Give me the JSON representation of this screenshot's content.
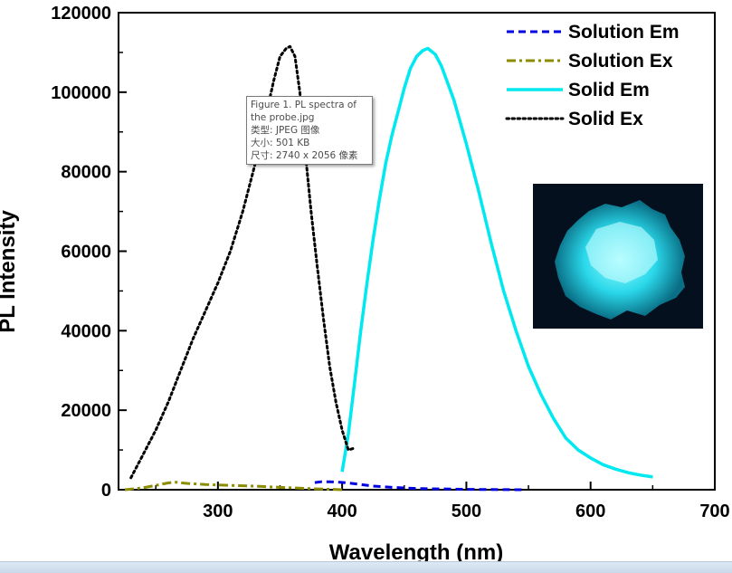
{
  "chart_data": {
    "type": "line",
    "title": "",
    "xlabel": "Wavelength (nm)",
    "ylabel": "PL Intensity",
    "xlim": [
      220,
      700
    ],
    "ylim": [
      0,
      120000
    ],
    "x_ticks": [
      300,
      400,
      500,
      600,
      700
    ],
    "x_tick_labels": [
      "300",
      "400",
      "500",
      "600",
      "700"
    ],
    "y_ticks": [
      0,
      20000,
      40000,
      60000,
      80000,
      100000,
      120000
    ],
    "y_tick_labels": [
      "0",
      "20000",
      "40000",
      "60000",
      "80000",
      "100000",
      "120000"
    ],
    "legend_position": "top-right",
    "series": [
      {
        "name": "Solution Em",
        "color": "#0000e0",
        "style": "dashed",
        "x": [
          378,
          383,
          390,
          398,
          405,
          415,
          425,
          440,
          460,
          480,
          500,
          520,
          545
        ],
        "values": [
          1800,
          2000,
          2000,
          1900,
          1700,
          1300,
          900,
          600,
          300,
          200,
          100,
          50,
          0
        ]
      },
      {
        "name": "Solution Ex",
        "color": "#8c8c00",
        "style": "dash-dot",
        "x": [
          225,
          240,
          250,
          260,
          266,
          275,
          290,
          310,
          330,
          350,
          365,
          380,
          400
        ],
        "values": [
          0,
          500,
          1100,
          1700,
          1900,
          1600,
          1300,
          1100,
          900,
          600,
          400,
          200,
          0
        ]
      },
      {
        "name": "Solid Em",
        "color": "#00e8f0",
        "style": "solid",
        "x": [
          400,
          405,
          410,
          415,
          420,
          425,
          430,
          435,
          440,
          445,
          450,
          455,
          460,
          465,
          469,
          475,
          480,
          490,
          500,
          510,
          520,
          530,
          540,
          550,
          560,
          570,
          580,
          590,
          600,
          610,
          620,
          630,
          640,
          650
        ],
        "values": [
          4500,
          14000,
          27000,
          40000,
          52000,
          63000,
          73000,
          82000,
          89000,
          95000,
          101000,
          106000,
          109000,
          110500,
          111000,
          109500,
          106500,
          98000,
          87000,
          75000,
          62000,
          50000,
          40000,
          31000,
          24000,
          18000,
          13000,
          10000,
          8000,
          6300,
          5200,
          4300,
          3700,
          3200
        ]
      },
      {
        "name": "Solid Ex",
        "color": "#000000",
        "style": "dotted",
        "x": [
          230,
          240,
          250,
          260,
          270,
          280,
          290,
          300,
          310,
          320,
          330,
          335,
          340,
          345,
          350,
          355,
          358,
          362,
          366,
          370,
          375,
          380,
          385,
          390,
          395,
          400,
          405,
          410
        ],
        "values": [
          3000,
          9000,
          15000,
          22000,
          30000,
          38000,
          45000,
          52000,
          60000,
          70000,
          82000,
          89000,
          96000,
          103000,
          109000,
          111000,
          111500,
          109000,
          100000,
          86000,
          70000,
          56000,
          43000,
          31000,
          22000,
          15000,
          10000,
          10500
        ]
      }
    ],
    "annotations": {
      "tooltip_lines": [
        "Figure 1. PL spectra of",
        "the probe.jpg",
        "类型: JPEG 图像",
        "大小: 501 KB",
        "尺寸: 2740 x 2056 像素"
      ],
      "inset": "photo of a cyan-glowing powder on a dark background"
    }
  }
}
